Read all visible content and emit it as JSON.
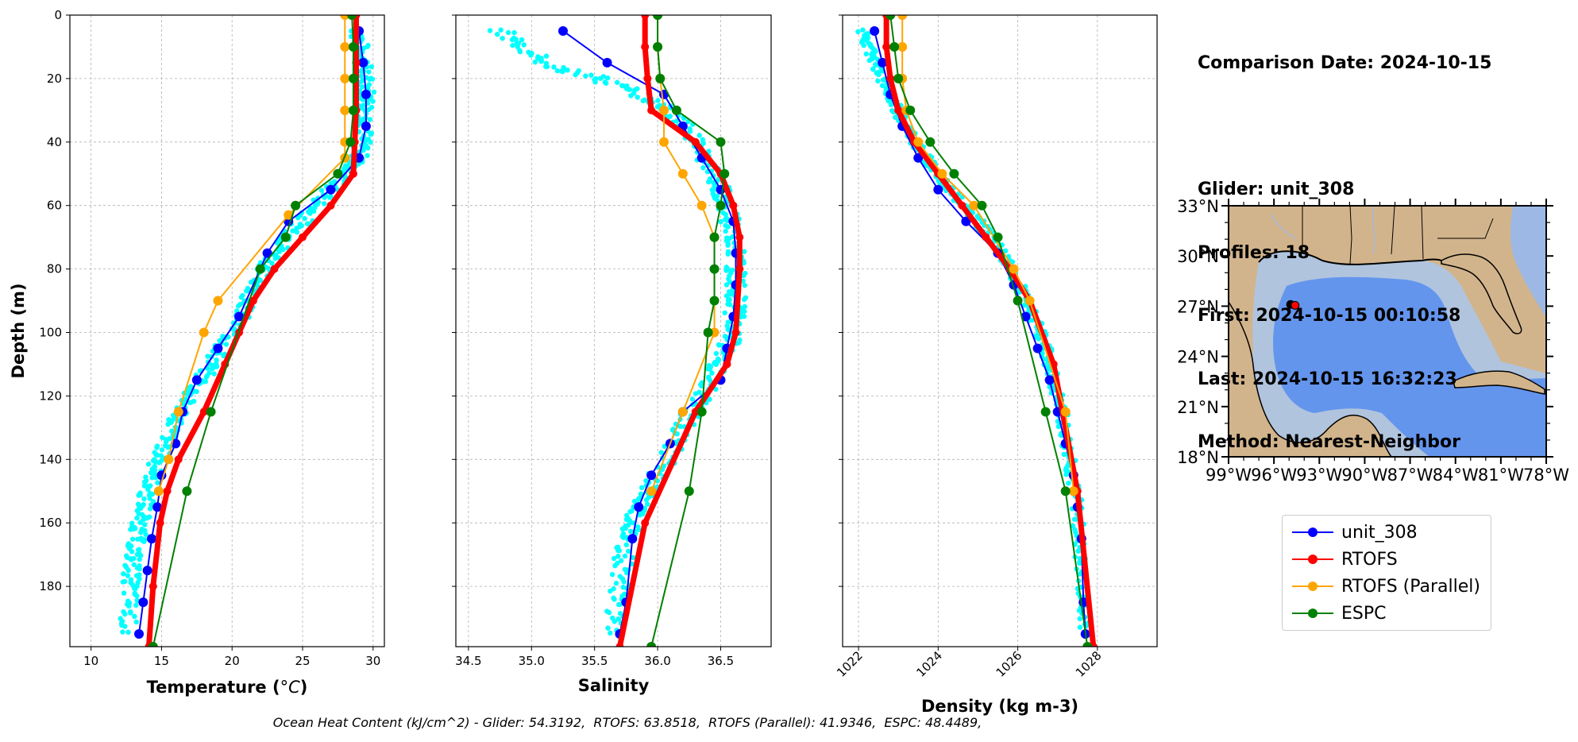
{
  "chart_data": [
    {
      "type": "line",
      "xlabel": "Temperature (",
      "xlabel_unit": "°C",
      "ylabel": "Depth (m)",
      "xlim": [
        8.5,
        30.8
      ],
      "ylim": [
        199,
        0
      ],
      "xticks": [
        10,
        15,
        20,
        25,
        30
      ],
      "xtick_labels": [
        "10",
        "15",
        "20",
        "25",
        "30"
      ],
      "yticks": [
        0,
        20,
        40,
        60,
        80,
        100,
        120,
        140,
        160,
        180
      ],
      "ytick_labels": [
        "0",
        "20",
        "40",
        "60",
        "80",
        "100",
        "120",
        "140",
        "160",
        "180"
      ],
      "grid": true,
      "scatter_cloud": {
        "name": "glider profiles",
        "color": "#00ffff",
        "x": [
          28.9,
          29.3,
          29.6,
          29.5,
          29.0,
          28.0,
          26.0,
          24.0,
          22.3,
          21.2,
          20.0,
          18.5,
          17.0,
          15.8,
          14.8,
          14.0,
          13.5,
          13.0,
          12.8,
          12.6
        ],
        "y": [
          5,
          15,
          25,
          35,
          45,
          50,
          60,
          70,
          80,
          90,
          100,
          110,
          120,
          130,
          140,
          150,
          160,
          170,
          180,
          195
        ],
        "spread": 0.6
      },
      "series": [
        {
          "name": "unit_308",
          "color": "#0000ff",
          "x": [
            29.0,
            29.3,
            29.5,
            29.5,
            29.0,
            27.0,
            24.0,
            22.5,
            20.5,
            19.0,
            17.5,
            16.5,
            16.0,
            15.0,
            14.7,
            14.3,
            14.0,
            13.7,
            13.4
          ],
          "y": [
            5,
            15,
            25,
            35,
            45,
            55,
            65,
            75,
            95,
            105,
            115,
            125,
            135,
            145,
            155,
            165,
            175,
            185,
            195
          ]
        },
        {
          "name": "RTOFS",
          "color": "#ff0000",
          "x": [
            28.8,
            28.8,
            28.8,
            28.7,
            28.6,
            27.0,
            25.0,
            23.0,
            21.5,
            20.5,
            19.5,
            18.0,
            16.2,
            15.4,
            14.9,
            14.4,
            14.1
          ],
          "y": [
            0,
            15,
            30,
            40,
            50,
            60,
            70,
            80,
            90,
            100,
            110,
            125,
            140,
            150,
            160,
            180,
            199
          ]
        },
        {
          "name": "RTOFS (Parallel)",
          "color": "#ffa500",
          "x": [
            28.0,
            28.0,
            28.0,
            28.0,
            28.0,
            28.0,
            24.0,
            19.0,
            18.0,
            16.2,
            15.5,
            14.8
          ],
          "y": [
            0,
            10,
            20,
            30,
            40,
            45,
            63,
            90,
            100,
            125,
            140,
            150
          ]
        },
        {
          "name": "ESPC",
          "color": "#008000",
          "x": [
            28.5,
            28.6,
            28.6,
            28.6,
            28.4,
            27.5,
            24.5,
            23.8,
            22.0,
            18.5,
            16.8,
            14.4
          ],
          "y": [
            0,
            10,
            20,
            30,
            40,
            50,
            60,
            70,
            80,
            125,
            150,
            199
          ]
        }
      ]
    },
    {
      "type": "line",
      "xlabel": "Salinity",
      "xlim": [
        34.4,
        36.9
      ],
      "ylim": [
        199,
        0
      ],
      "xticks": [
        34.5,
        35.0,
        35.5,
        36.0,
        36.5
      ],
      "xtick_labels": [
        "34.5",
        "35.0",
        "35.5",
        "36.0",
        "36.5"
      ],
      "yticks": [
        0,
        20,
        40,
        60,
        80,
        100,
        120,
        140,
        160,
        180
      ],
      "grid": true,
      "scatter_cloud": {
        "name": "glider profiles",
        "color": "#00ffff",
        "x": [
          34.75,
          35.1,
          35.7,
          36.1,
          36.3,
          36.45,
          36.55,
          36.6,
          36.62,
          36.62,
          36.6,
          36.5,
          36.35,
          36.2,
          36.0,
          35.85,
          35.75,
          35.7,
          35.65
        ],
        "y": [
          5,
          15,
          22,
          30,
          40,
          50,
          60,
          70,
          80,
          90,
          100,
          110,
          120,
          130,
          145,
          155,
          165,
          180,
          195
        ],
        "spread": 0.08
      },
      "series": [
        {
          "name": "unit_308",
          "color": "#0000ff",
          "x": [
            35.25,
            35.6,
            36.05,
            36.2,
            36.35,
            36.5,
            36.6,
            36.62,
            36.62,
            36.6,
            36.55,
            36.5,
            36.2,
            36.1,
            35.95,
            35.85,
            35.8,
            35.75,
            35.7
          ],
          "y": [
            5,
            15,
            25,
            35,
            45,
            55,
            65,
            75,
            85,
            95,
            105,
            115,
            125,
            135,
            145,
            155,
            165,
            185,
            195
          ]
        },
        {
          "name": "RTOFS",
          "color": "#ff0000",
          "x": [
            35.9,
            35.9,
            35.92,
            35.95,
            36.3,
            36.5,
            36.6,
            36.65,
            36.65,
            36.62,
            36.55,
            36.3,
            35.9,
            35.7
          ],
          "y": [
            0,
            10,
            20,
            30,
            40,
            50,
            60,
            70,
            80,
            100,
            110,
            125,
            160,
            199
          ]
        },
        {
          "name": "RTOFS (Parallel)",
          "color": "#ffa500",
          "x": [
            36.0,
            36.0,
            36.02,
            36.05,
            36.05,
            36.2,
            36.35,
            36.45,
            36.45,
            36.2,
            35.95
          ],
          "y": [
            0,
            10,
            20,
            30,
            40,
            50,
            60,
            70,
            100,
            125,
            150
          ]
        },
        {
          "name": "ESPC",
          "color": "#008000",
          "x": [
            36.0,
            36.0,
            36.02,
            36.15,
            36.5,
            36.53,
            36.5,
            36.45,
            36.45,
            36.45,
            36.4,
            36.35,
            36.25,
            35.95
          ],
          "y": [
            0,
            10,
            20,
            30,
            40,
            50,
            60,
            70,
            80,
            90,
            100,
            125,
            150,
            199
          ]
        }
      ]
    },
    {
      "type": "line",
      "xlabel": "Density (kg m-3)",
      "xlim": [
        1021.6,
        1029.5
      ],
      "ylim": [
        199,
        0
      ],
      "xticks": [
        1022,
        1024,
        1026,
        1028
      ],
      "xtick_labels": [
        "1022",
        "1024",
        "1026",
        "1028"
      ],
      "yticks": [
        0,
        20,
        40,
        60,
        80,
        100,
        120,
        140,
        160,
        180
      ],
      "grid": true,
      "scatter_cloud": {
        "name": "glider profiles",
        "color": "#00ffff",
        "x": [
          1022.1,
          1022.4,
          1022.8,
          1023.2,
          1023.7,
          1024.3,
          1025.0,
          1025.6,
          1026.0,
          1026.4,
          1026.7,
          1026.9,
          1027.1,
          1027.3,
          1027.5,
          1027.6,
          1027.7
        ],
        "y": [
          5,
          15,
          25,
          35,
          45,
          55,
          65,
          75,
          85,
          95,
          105,
          115,
          125,
          140,
          155,
          175,
          195
        ],
        "spread": 0.15
      },
      "series": [
        {
          "name": "unit_308",
          "color": "#0000ff",
          "x": [
            1022.4,
            1022.6,
            1022.8,
            1023.1,
            1023.5,
            1024.0,
            1024.7,
            1025.5,
            1025.9,
            1026.2,
            1026.5,
            1026.8,
            1027.0,
            1027.2,
            1027.4,
            1027.5,
            1027.6,
            1027.65,
            1027.7
          ],
          "y": [
            5,
            15,
            25,
            35,
            45,
            55,
            65,
            75,
            85,
            95,
            105,
            115,
            125,
            135,
            145,
            155,
            165,
            185,
            195
          ]
        },
        {
          "name": "RTOFS",
          "color": "#ff0000",
          "x": [
            1022.7,
            1022.7,
            1022.8,
            1023.0,
            1023.4,
            1024.0,
            1024.6,
            1025.2,
            1025.8,
            1026.3,
            1026.9,
            1027.5,
            1027.9
          ],
          "y": [
            0,
            10,
            20,
            30,
            40,
            50,
            60,
            70,
            80,
            90,
            110,
            150,
            199
          ]
        },
        {
          "name": "RTOFS (Parallel)",
          "color": "#ffa500",
          "x": [
            1023.1,
            1023.1,
            1023.1,
            1023.2,
            1023.5,
            1024.1,
            1024.9,
            1025.9,
            1026.3,
            1027.2,
            1027.4
          ],
          "y": [
            0,
            10,
            20,
            30,
            40,
            50,
            60,
            80,
            90,
            125,
            150
          ]
        },
        {
          "name": "ESPC",
          "color": "#008000",
          "x": [
            1022.8,
            1022.9,
            1023.0,
            1023.3,
            1023.8,
            1024.4,
            1025.1,
            1025.5,
            1026.0,
            1026.7,
            1027.2,
            1027.75
          ],
          "y": [
            0,
            10,
            20,
            30,
            40,
            50,
            60,
            70,
            90,
            125,
            150,
            199
          ]
        }
      ]
    }
  ],
  "info": {
    "comparison_date": "Comparison Date: 2024-10-15",
    "glider": "Glider: unit_308",
    "profiles": "Profiles: 18",
    "first": "First: 2024-10-15 00:10:58",
    "last": "Last: 2024-10-15 16:32:23",
    "method": "Method: Nearest-Neighbor"
  },
  "map": {
    "lat_labels": [
      "33°N",
      "30°N",
      "27°N",
      "24°N",
      "21°N",
      "18°N"
    ],
    "lon_labels": [
      "99°W",
      "96°W",
      "93°W",
      "90°W",
      "87°W",
      "84°W",
      "81°W",
      "78°W"
    ],
    "markers": [
      {
        "name": "glider",
        "lon": -94.9,
        "lat": 27.1
      },
      {
        "name": "model",
        "lon": -94.6,
        "lat": 27.05
      }
    ],
    "colors": {
      "land": "#d2b48c",
      "deep": "#6495ed",
      "shelf": "#b0c4de",
      "mid": "#9db8e4"
    }
  },
  "legend": [
    {
      "label": "unit_308",
      "color": "#0000ff"
    },
    {
      "label": "RTOFS",
      "color": "#ff0000"
    },
    {
      "label": "RTOFS (Parallel)",
      "color": "#ffa500"
    },
    {
      "label": "ESPC",
      "color": "#008000"
    }
  ],
  "footer": "Ocean Heat Content (kJ/cm^2) - Glider: 54.3192,  RTOFS: 63.8518,  RTOFS (Parallel): 41.9346,  ESPC: 48.4489,"
}
